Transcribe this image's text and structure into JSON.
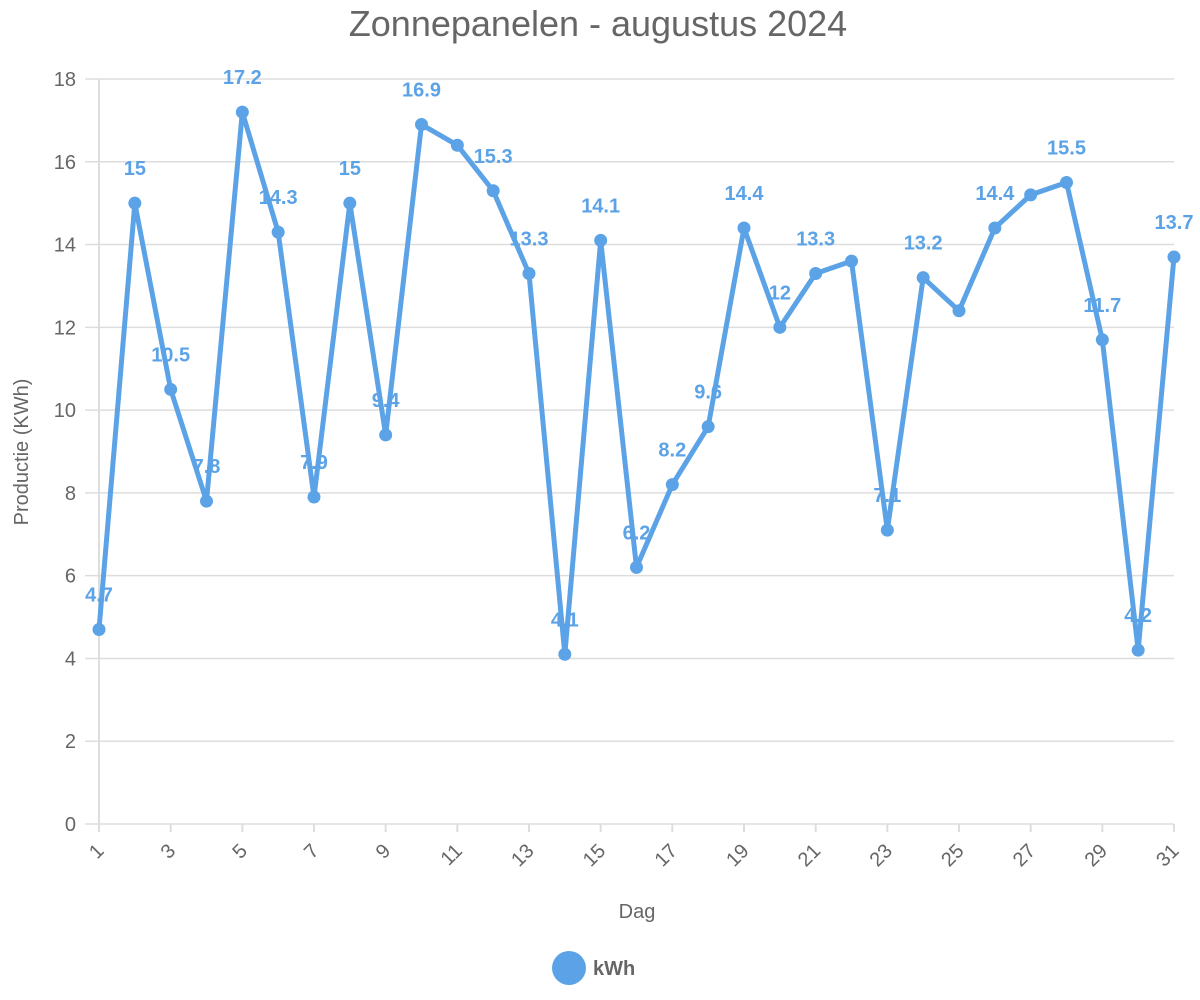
{
  "chart_data": {
    "type": "line",
    "title": "Zonnepanelen - augustus 2024",
    "xlabel": "Dag",
    "ylabel": "Productie (KWh)",
    "x": [
      1,
      2,
      3,
      4,
      5,
      6,
      7,
      8,
      9,
      10,
      11,
      12,
      13,
      14,
      15,
      16,
      17,
      18,
      19,
      20,
      21,
      22,
      23,
      24,
      25,
      26,
      27,
      28,
      29,
      30,
      31
    ],
    "x_tick_labels": [
      "1",
      "3",
      "5",
      "7",
      "9",
      "11",
      "13",
      "15",
      "17",
      "19",
      "21",
      "23",
      "25",
      "27",
      "29",
      "31"
    ],
    "ylim": [
      0,
      18
    ],
    "y_tick_labels": [
      "0",
      "2",
      "4",
      "6",
      "8",
      "10",
      "12",
      "14",
      "16",
      "18"
    ],
    "grid": true,
    "legend_position": "bottom",
    "series": [
      {
        "name": "kWh",
        "color": "#5ba3e6",
        "values": [
          4.7,
          15,
          10.5,
          7.8,
          17.2,
          14.3,
          7.9,
          15,
          9.4,
          16.9,
          16.4,
          15.3,
          13.3,
          4.1,
          14.1,
          6.2,
          8.2,
          9.6,
          14.4,
          12,
          13.3,
          13.6,
          7.1,
          13.2,
          12.4,
          14.4,
          15.2,
          15.5,
          11.7,
          4.2,
          13.7
        ],
        "data_labels": [
          "4.7",
          "15",
          "10.5",
          "7.8",
          "17.2",
          "14.3",
          "7.9",
          "15",
          "9.4",
          "16.9",
          "",
          "15.3",
          "13.3",
          "4.1",
          "14.1",
          "6.2",
          "8.2",
          "9.6",
          "14.4",
          "12",
          "13.3",
          "",
          "7.1",
          "13.2",
          "",
          "14.4",
          "",
          "15.5",
          "11.7",
          "4.2",
          "13.7"
        ]
      }
    ]
  }
}
